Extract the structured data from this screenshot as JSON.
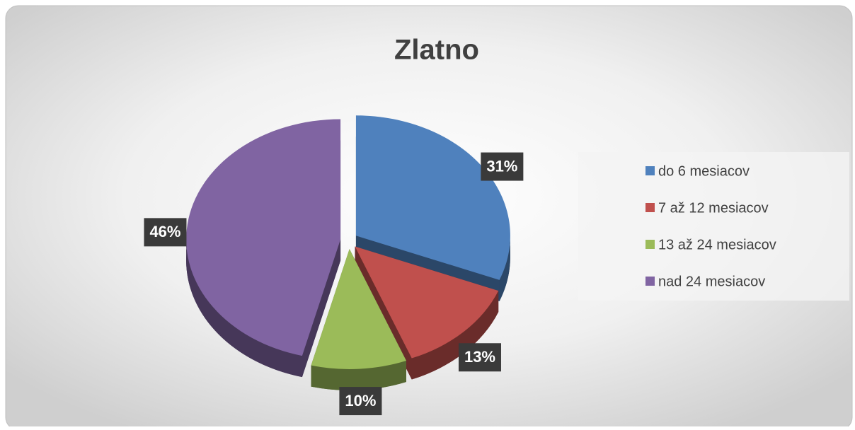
{
  "chart_data": {
    "type": "pie",
    "title": "Zlatno",
    "categories": [
      "do 6 mesiacov",
      "7 až 12 mesiacov",
      "13 až 24 mesiacov",
      "nad 24 mesiacov"
    ],
    "values": [
      31,
      13,
      10,
      46
    ],
    "value_labels": [
      "31%",
      "13%",
      "10%",
      "46%"
    ],
    "colors": [
      "#4f81bd",
      "#c0504d",
      "#9bbb59",
      "#8064a2"
    ],
    "legend": "right"
  }
}
